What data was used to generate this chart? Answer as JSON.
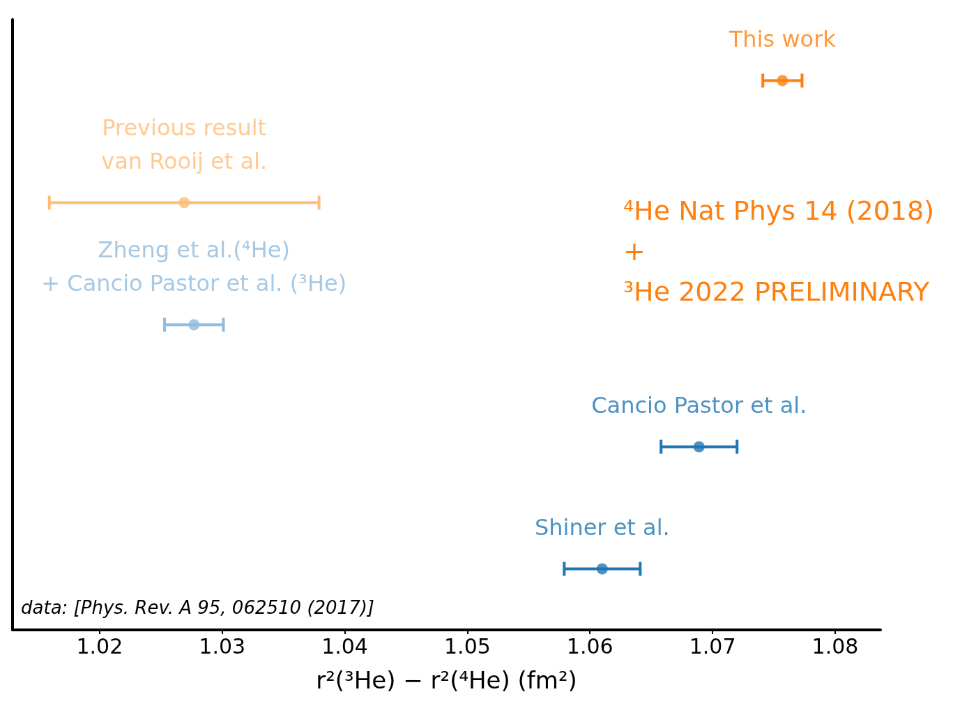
{
  "chart_data": {
    "type": "scatter",
    "orientation": "horizontal",
    "xlabel": "r²(³He) − r²(⁴He) (fm²)",
    "categories": [
      null,
      null,
      null,
      null,
      null
    ],
    "xlim": [
      1.0129,
      1.0837
    ],
    "xticks": [
      1.02,
      1.03,
      1.04,
      1.05,
      1.06,
      1.07,
      1.08
    ],
    "grid": false,
    "legend": false,
    "marker": "circle",
    "tick_labels": "x",
    "series": [
      {
        "name": "This work",
        "color": "#ff7f0e",
        "values": [
          1.0757,
          null,
          null,
          null,
          null
        ],
        "errors": [
          0.0016,
          null,
          null,
          null,
          null
        ]
      },
      {
        "name": "Previous result\nvan Rooij et al.",
        "color": "#ffbb78",
        "values": [
          null,
          1.0269,
          null,
          null,
          null
        ],
        "errors": [
          null,
          0.011,
          null,
          null,
          null
        ]
      },
      {
        "name": "Zheng et al.(⁴He)\n+ Cancio Pastor et al. (³He)",
        "color": "#8fbcdf",
        "values": [
          null,
          null,
          1.0277,
          null,
          null
        ],
        "errors": [
          null,
          null,
          0.0024,
          null,
          null
        ]
      },
      {
        "name": "Cancio Pastor et al.",
        "color": "#1f77b4",
        "values": [
          null,
          null,
          null,
          1.0689,
          null
        ],
        "errors": [
          null,
          null,
          null,
          0.0031,
          null
        ]
      },
      {
        "name": "Shiner et al.",
        "color": "#1f77b4",
        "values": [
          null,
          null,
          null,
          null,
          1.061
        ],
        "errors": [
          null,
          null,
          null,
          null,
          0.0031
        ]
      }
    ],
    "annotations": [
      "⁴He Nat Phys 14 (2018)\n+\n³He 2022 PRELIMINARY",
      "data: [Phys. Rev. A 95, 062510 (2017)]"
    ]
  }
}
